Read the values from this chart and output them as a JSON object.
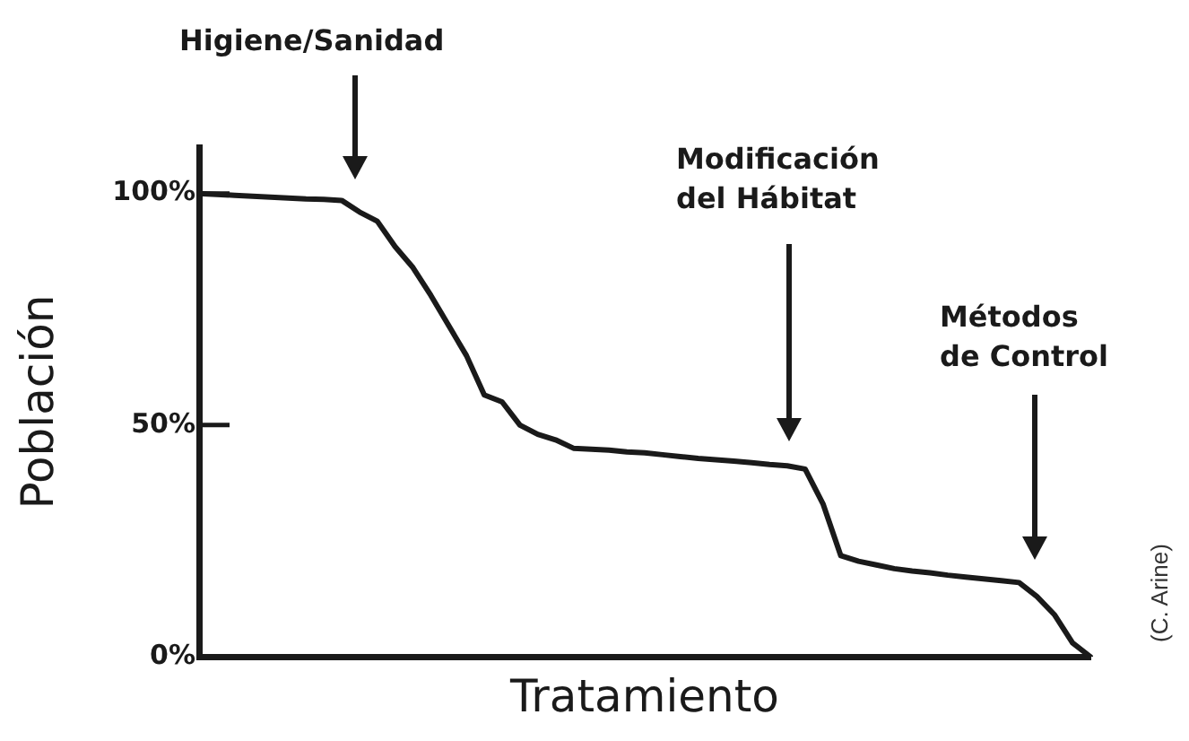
{
  "chart_data": {
    "type": "line",
    "xlabel": "Tratamiento",
    "ylabel": "Población",
    "categories": [
      null,
      null,
      null,
      null,
      null,
      null,
      null,
      null,
      null,
      null,
      null,
      null,
      null,
      null,
      null,
      null,
      null,
      null,
      null,
      null,
      null,
      null,
      null,
      null,
      null,
      null,
      null,
      null,
      null,
      null,
      null,
      null,
      null,
      null,
      null,
      null,
      null,
      null,
      null,
      null,
      null,
      null,
      null,
      null,
      null,
      null,
      null,
      null,
      null,
      null,
      null
    ],
    "series": [
      {
        "color": "#1a1a1a",
        "values": [
          100,
          99.8,
          99.6,
          99.4,
          99.2,
          99,
          98.8,
          98.7,
          98.5,
          96,
          94,
          88.5,
          84,
          78,
          71.5,
          65,
          56.5,
          55,
          50,
          48,
          46.8,
          45,
          44.8,
          44.6,
          44.2,
          44,
          43.6,
          43.2,
          42.8,
          42.5,
          42.2,
          41.9,
          41.5,
          41.2,
          40.5,
          33,
          21.8,
          20.6,
          19.8,
          19,
          18.5,
          18.1,
          17.6,
          17.2,
          16.8,
          16.4,
          16,
          13,
          9,
          3,
          0
        ]
      }
    ],
    "ylim": [
      0,
      110
    ],
    "yticks": [
      {
        "value": 0,
        "label": "0%"
      },
      {
        "value": 50,
        "label": "50%"
      },
      {
        "value": 100,
        "label": "100%"
      }
    ],
    "tick_labels": "y",
    "marker": "none",
    "line_style": "solid",
    "annotations": [
      "Higiene/Sanidad",
      "Modificación\ndel Hábitat",
      "Métodos\nde Control",
      "(C. Arine)"
    ]
  }
}
